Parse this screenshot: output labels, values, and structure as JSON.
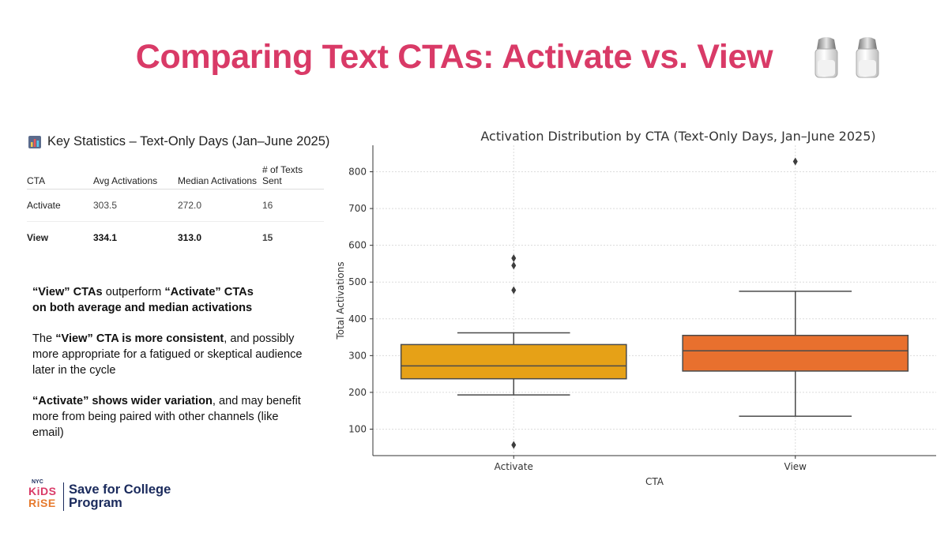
{
  "slide": {
    "title": "Comparing Text CTAs: Activate vs. View",
    "title_color": "#d93a67",
    "decoration_icon": "salt-and-pepper-shakers"
  },
  "stats": {
    "heading": "Key Statistics – Text-Only Days (Jan–June 2025)",
    "heading_icon": "bar-chart-icon",
    "columns": [
      "CTA",
      "Avg Activations",
      "Median Activations",
      "# of Texts Sent"
    ],
    "rows": [
      {
        "cta": "Activate",
        "avg": "303.5",
        "median": "272.0",
        "texts": "16",
        "bold": false
      },
      {
        "cta": "View",
        "avg": "334.1",
        "median": "313.0",
        "texts": "15",
        "bold": true
      }
    ]
  },
  "notes": {
    "p1_bold1": "“View” CTAs",
    "p1_plain": " outperform ",
    "p1_bold2": "“Activate” CTAs",
    "p1_line2": "on both average and median activations",
    "p2_pre": "The ",
    "p2_bold": "“View” CTA is more consistent",
    "p2_rest": ", and possibly more appropriate for a fatigued or skeptical audience later in the cycle",
    "p3_bold": "“Activate” shows wider variation",
    "p3_rest": ", and may benefit more from being paired with other channels (like email)"
  },
  "logo": {
    "nyc": "NYC",
    "kids": "KiDS",
    "rise": "RiSE",
    "line1": "Save for College",
    "line2": "Program"
  },
  "chart_data": {
    "type": "box",
    "title": "Activation Distribution by CTA (Text-Only Days, Jan–June 2025)",
    "xlabel": "CTA",
    "ylabel": "Total Activations",
    "categories": [
      "Activate",
      "View"
    ],
    "yticks": [
      100,
      200,
      300,
      400,
      500,
      600,
      700,
      800
    ],
    "ylim": [
      28,
      872
    ],
    "grid": true,
    "boxes": [
      {
        "name": "Activate",
        "whisker_low": 193,
        "q1": 237,
        "median": 272,
        "q3": 330,
        "whisker_high": 362,
        "outliers": [
          565,
          545,
          478,
          57
        ],
        "color": "#e6a117"
      },
      {
        "name": "View",
        "whisker_low": 135,
        "q1": 258,
        "median": 313,
        "q3": 355,
        "whisker_high": 475,
        "outliers": [
          828
        ],
        "color": "#e8702e"
      }
    ]
  }
}
